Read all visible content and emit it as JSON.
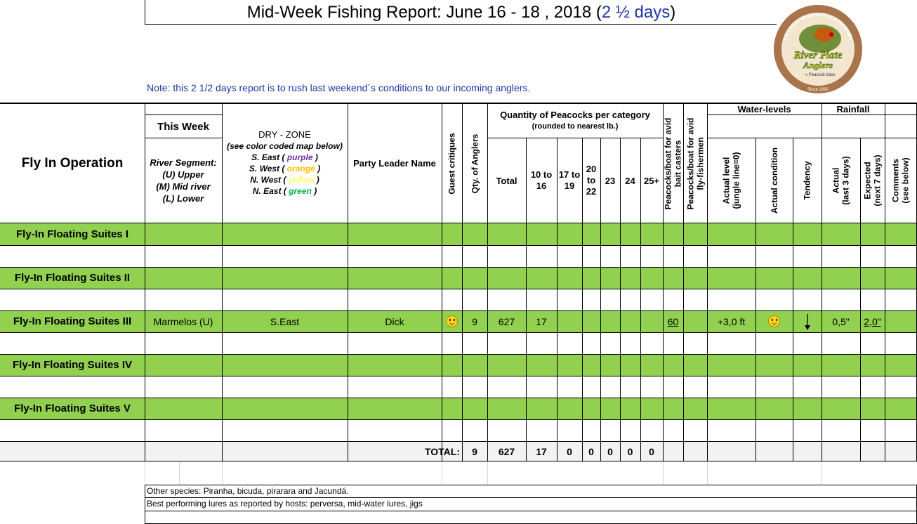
{
  "report": {
    "title_main": "Mid-Week Fishing Report:  June 16 - 18 , 2018 (",
    "title_days": "2 ½ days",
    "title_close": ")",
    "note": "Note:  this 2 1/2 days report is to rush last weekend´s conditions to our incoming anglers."
  },
  "logo": {
    "top_text": "EXCLUSIVE AMAZON PRIVATE FISHERIES",
    "brand_line1": "River Plate",
    "brand_line2": "Anglers",
    "tagline": "« Peacock bass",
    "since": "Since 1992"
  },
  "headers": {
    "operation": "Fly In Operation",
    "this_week": "This Week",
    "segment_line1": "River Segment:",
    "segment_line2": "(U) Upper",
    "segment_line3": "(M) Mid river",
    "segment_line4": "(L) Lower",
    "dry_zone": "DRY - ZONE",
    "dry_zone_sub": "(see color coded map below)",
    "zone_se_label": "S. East (",
    "zone_se_color": "purple",
    "zone_sw_label": "S. West (",
    "zone_sw_color": "orange",
    "zone_nw_label": "N. West (",
    "zone_nw_color": "yellow",
    "zone_ne_label": "N. East (",
    "zone_ne_color": "green",
    "zone_close": ")",
    "party_leader": "Party Leader Name",
    "guest_critiques": "Guest critiques",
    "qty_anglers": "Qty. of Anglers",
    "quantity_title": "Quantity of Peacocks per category",
    "quantity_sub": "(rounded to nearest lb.)",
    "total": "Total",
    "cat_10_16_a": "10 to",
    "cat_10_16_b": "16",
    "cat_17_19_a": "17 to",
    "cat_17_19_b": "19",
    "cat_20_22_a": "20",
    "cat_20_22_b": "to",
    "cat_20_22_c": "22",
    "cat_23": "23",
    "cat_24": "24",
    "cat_25": "25+",
    "bait_casters_a": "Peacocks/boat for avid",
    "bait_casters_b": "bait casters",
    "fly_fishermen_a": "Peacocks/boat for avid",
    "fly_fishermen_b": "fly-fishermen",
    "water_levels": "Water-levels",
    "actual_level_a": "Actual level",
    "actual_level_b": "(jungle line=0)",
    "actual_condition": "Actual condition",
    "tendency": "Tendency",
    "rainfall": "Rainfall",
    "rain_actual_a": "Actual",
    "rain_actual_b": "(last 3 days)",
    "rain_expected_a": "Expected",
    "rain_expected_b": "(next 7 days)",
    "comments_a": "Comments",
    "comments_b": "(see below)"
  },
  "rows": [
    {
      "name": "Fly-In Floating Suites I"
    },
    {
      "name": "Fly-In Floating Suites II"
    },
    {
      "name": "Fly-In Floating Suites III",
      "segment": "Marmelos (U)",
      "zone": "S.East",
      "leader": "Dick",
      "critique_icon": "smiley-icon",
      "anglers": "9",
      "total": "627",
      "cat_10_16": "17",
      "bait_casters": "60",
      "actual_level": "+3,0 ft",
      "condition_icon": "smiley-icon",
      "tendency_icon": "arrow-down-icon",
      "rain_actual": "0,5\"",
      "rain_expected": "2,0\""
    },
    {
      "name": "Fly-In Floating Suites IV"
    },
    {
      "name": "Fly-In Floating Suites V"
    }
  ],
  "totals": {
    "label": "TOTAL:",
    "anglers": "9",
    "total": "627",
    "cat_10_16": "17",
    "cat_17_19": "0",
    "cat_20_22": "0",
    "cat_23": "0",
    "cat_24": "0",
    "cat_25": "0"
  },
  "footer": {
    "other_species": "Other species: Piranha, bicuda, pirarara and Jacundá.",
    "best_lures": "Best performing lures as reported by hosts: perversa, mid-water lures, jigs"
  },
  "colors": {
    "row_green": "#92d050",
    "title_blue": "#1f35a8",
    "zone_purple": "#7030a0",
    "zone_orange": "#ffc000",
    "zone_yellow": "#ffff66",
    "zone_green": "#00b050"
  }
}
